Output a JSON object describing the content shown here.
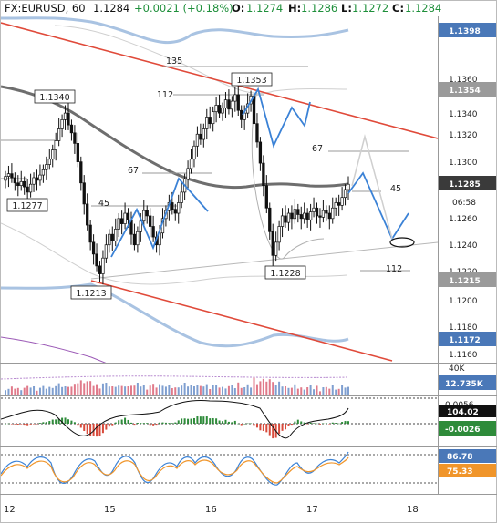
{
  "header": {
    "symbol": "FX:EURUSD, 60",
    "last": "1.1284",
    "change": "+0.0021 (+0.18%)",
    "o_label": "O:",
    "o_val": "1.1274",
    "h_label": "H:",
    "h_val": "1.1286",
    "l_label": "L:",
    "l_val": "1.1272",
    "c_label": "C:",
    "c_val": "1.1284"
  },
  "price_axis": {
    "ticks": [
      "1.1360",
      "1.1340",
      "1.1320",
      "1.1300",
      "1.1260",
      "1.1240",
      "1.1220",
      "1.1200",
      "1.1180",
      "1.1160"
    ],
    "tags": [
      {
        "text": "1.1398",
        "color": "#4a78b8"
      },
      {
        "text": "1.1354",
        "color": "#9a9a9a"
      },
      {
        "text": "1.1285",
        "color": "#3a3a3a"
      },
      {
        "text": "06:58",
        "color": "#ffffff"
      },
      {
        "text": "1.1215",
        "color": "#9a9a9a"
      },
      {
        "text": "1.1172",
        "color": "#4a78b8"
      }
    ]
  },
  "price_labels": {
    "p1340": "1.1340",
    "p1277": "1.1277",
    "p1213": "1.1213",
    "p1353": "1.1353",
    "p1228": "1.1228"
  },
  "fib_labels": {
    "f135": "135",
    "f112a": "112",
    "f67a": "67",
    "f45a": "45",
    "f67b": "67",
    "f45b": "45",
    "f112b": "112"
  },
  "volume_panel": {
    "tick": "40K",
    "tag": "12.735K",
    "tag_color": "#4a78b8"
  },
  "macd_panel": {
    "tags": [
      {
        "text": "0.0056",
        "color": "#1a1a1a",
        "bg": "#ffffff"
      },
      {
        "text": "104.02",
        "color": "#ffffff",
        "bg": "#111111"
      },
      {
        "text": "-0.0026",
        "color": "#ffffff",
        "bg": "#2e8b3a"
      }
    ]
  },
  "stoch_panel": {
    "tags": [
      {
        "text": "86.78",
        "color": "#ffffff",
        "bg": "#4a78b8"
      },
      {
        "text": "75.33",
        "color": "#ffffff",
        "bg": "#f0952a"
      }
    ]
  },
  "x_axis": {
    "ticks": [
      "12",
      "15",
      "16",
      "17",
      "18"
    ]
  },
  "chart_data": {
    "type": "candlestick",
    "title": "FX:EURUSD, 60",
    "y_range": [
      1.115,
      1.141
    ],
    "x_ticks": [
      "12",
      "15",
      "16",
      "17",
      "18"
    ],
    "annotated_levels": [
      "1.1353",
      "1.1340",
      "1.1277",
      "1.1228",
      "1.1213"
    ],
    "close": [
      1.129,
      1.1292,
      1.1289,
      1.1285,
      1.1283,
      1.1286,
      1.1282,
      1.1278,
      1.1284,
      1.1289,
      1.1287,
      1.1291,
      1.1295,
      1.1299,
      1.1303,
      1.131,
      1.1317,
      1.1326,
      1.1333,
      1.1338,
      1.1329,
      1.1323,
      1.1315,
      1.1301,
      1.1285,
      1.1269,
      1.1253,
      1.124,
      1.1231,
      1.1222,
      1.1216,
      1.1228,
      1.1238,
      1.1246,
      1.1241,
      1.125,
      1.1258,
      1.1254,
      1.1262,
      1.1257,
      1.1246,
      1.1238,
      1.1248,
      1.1256,
      1.1264,
      1.126,
      1.1252,
      1.1244,
      1.1238,
      1.1247,
      1.1258,
      1.1264,
      1.127,
      1.1265,
      1.1262,
      1.127,
      1.1278,
      1.1288,
      1.1296,
      1.1303,
      1.1313,
      1.1322,
      1.1318,
      1.1326,
      1.1335,
      1.133,
      1.1339,
      1.1344,
      1.1338,
      1.1342,
      1.1348,
      1.1341,
      1.1347,
      1.1352,
      1.134,
      1.1333,
      1.1338,
      1.1345,
      1.1351,
      1.133,
      1.1316,
      1.13,
      1.1283,
      1.1266,
      1.1248,
      1.123,
      1.124,
      1.1252,
      1.126,
      1.1255,
      1.1262,
      1.1258,
      1.1265,
      1.1261,
      1.1258,
      1.1262,
      1.1257,
      1.1263,
      1.1266,
      1.126,
      1.1259,
      1.1264,
      1.1262,
      1.1258,
      1.1266,
      1.127,
      1.1268,
      1.1274,
      1.128,
      1.1284
    ]
  }
}
